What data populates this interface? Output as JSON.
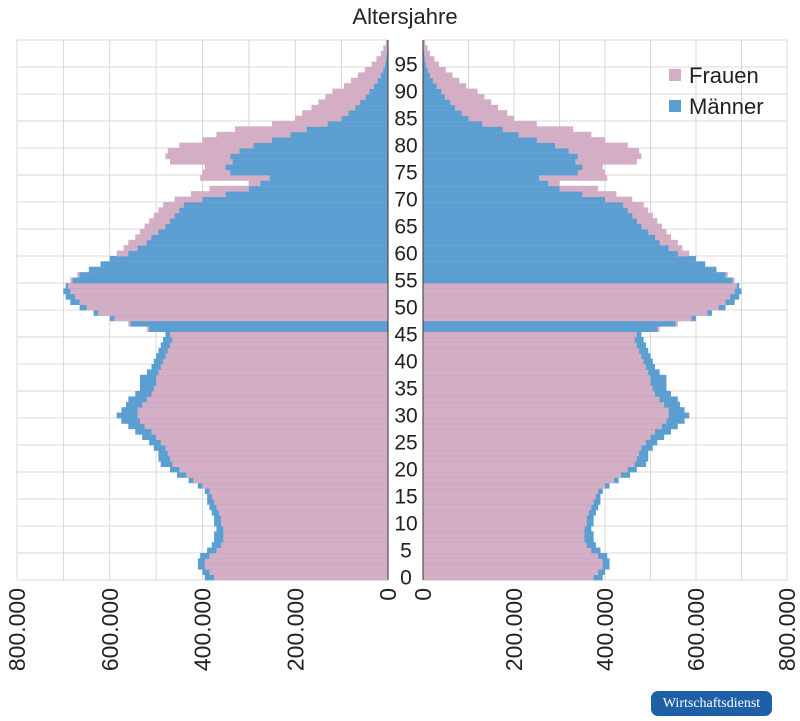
{
  "chart_data": {
    "type": "bar",
    "title": "Altersjahre",
    "orientation": "horizontal",
    "grid": true,
    "legend_position": "top-right",
    "xlim": [
      0,
      800000
    ],
    "x_ticks": [
      "800.000",
      "600.000",
      "400.000",
      "200.000",
      "0"
    ],
    "x_ticks_right": [
      "0",
      "200.000",
      "400.000",
      "600.000",
      "800.000"
    ],
    "age_ticks": [
      "0",
      "5",
      "10",
      "15",
      "20",
      "25",
      "30",
      "35",
      "40",
      "45",
      "50",
      "55",
      "60",
      "65",
      "70",
      "75",
      "80",
      "85",
      "90",
      "95"
    ],
    "categories": [
      "0",
      "1",
      "2",
      "3",
      "4",
      "5",
      "6",
      "7",
      "8",
      "9",
      "10",
      "11",
      "12",
      "13",
      "14",
      "15",
      "16",
      "17",
      "18",
      "19",
      "20",
      "21",
      "22",
      "23",
      "24",
      "25",
      "26",
      "27",
      "28",
      "29",
      "30",
      "31",
      "32",
      "33",
      "34",
      "35",
      "36",
      "37",
      "38",
      "39",
      "40",
      "41",
      "42",
      "43",
      "44",
      "45",
      "46",
      "47",
      "48",
      "49",
      "50",
      "51",
      "52",
      "53",
      "54",
      "55",
      "56",
      "57",
      "58",
      "59",
      "60",
      "61",
      "62",
      "63",
      "64",
      "65",
      "66",
      "67",
      "68",
      "69",
      "70",
      "71",
      "72",
      "73",
      "74",
      "75",
      "76",
      "77",
      "78",
      "79",
      "80",
      "81",
      "82",
      "83",
      "84",
      "85",
      "86",
      "87",
      "88",
      "89",
      "90",
      "91",
      "92",
      "93",
      "94",
      "95",
      "96",
      "97",
      "98",
      "99"
    ],
    "series": [
      {
        "name": "Frauen",
        "color": "#d3aec4",
        "values": [
          375000,
          385000,
          395000,
          395000,
          385000,
          370000,
          360000,
          355000,
          355000,
          355000,
          360000,
          360000,
          365000,
          370000,
          375000,
          380000,
          385000,
          400000,
          420000,
          435000,
          450000,
          465000,
          470000,
          475000,
          480000,
          490000,
          500000,
          510000,
          525000,
          535000,
          540000,
          540000,
          530000,
          520000,
          510000,
          505000,
          500000,
          500000,
          495000,
          490000,
          485000,
          480000,
          475000,
          470000,
          465000,
          470000,
          520000,
          560000,
          590000,
          625000,
          650000,
          665000,
          675000,
          685000,
          690000,
          685000,
          670000,
          645000,
          620000,
          600000,
          585000,
          570000,
          560000,
          545000,
          535000,
          525000,
          515000,
          505000,
          495000,
          485000,
          460000,
          425000,
          385000,
          300000,
          405000,
          400000,
          395000,
          470000,
          480000,
          475000,
          450000,
          400000,
          370000,
          330000,
          250000,
          200000,
          185000,
          165000,
          150000,
          135000,
          120000,
          95000,
          80000,
          65000,
          50000,
          35000,
          25000,
          15000,
          10000,
          5000
        ]
      },
      {
        "name": "Männer",
        "color": "#5b9fd2",
        "values": [
          395000,
          400000,
          410000,
          410000,
          405000,
          390000,
          380000,
          375000,
          375000,
          370000,
          375000,
          375000,
          380000,
          385000,
          390000,
          390000,
          395000,
          410000,
          430000,
          455000,
          470000,
          490000,
          495000,
          495000,
          505000,
          515000,
          530000,
          545000,
          560000,
          575000,
          585000,
          575000,
          565000,
          560000,
          545000,
          535000,
          535000,
          535000,
          520000,
          510000,
          505000,
          500000,
          495000,
          490000,
          485000,
          480000,
          515000,
          555000,
          600000,
          635000,
          665000,
          685000,
          695000,
          700000,
          695000,
          680000,
          665000,
          645000,
          620000,
          600000,
          560000,
          540000,
          520000,
          510000,
          495000,
          480000,
          470000,
          460000,
          450000,
          440000,
          400000,
          350000,
          300000,
          275000,
          255000,
          340000,
          350000,
          335000,
          340000,
          320000,
          290000,
          250000,
          210000,
          175000,
          130000,
          100000,
          85000,
          70000,
          60000,
          48000,
          40000,
          30000,
          22000,
          15000,
          10000,
          6000,
          4000,
          2500,
          1500,
          800
        ]
      }
    ]
  },
  "badge": {
    "text": "Wirtschaftsdienst"
  }
}
